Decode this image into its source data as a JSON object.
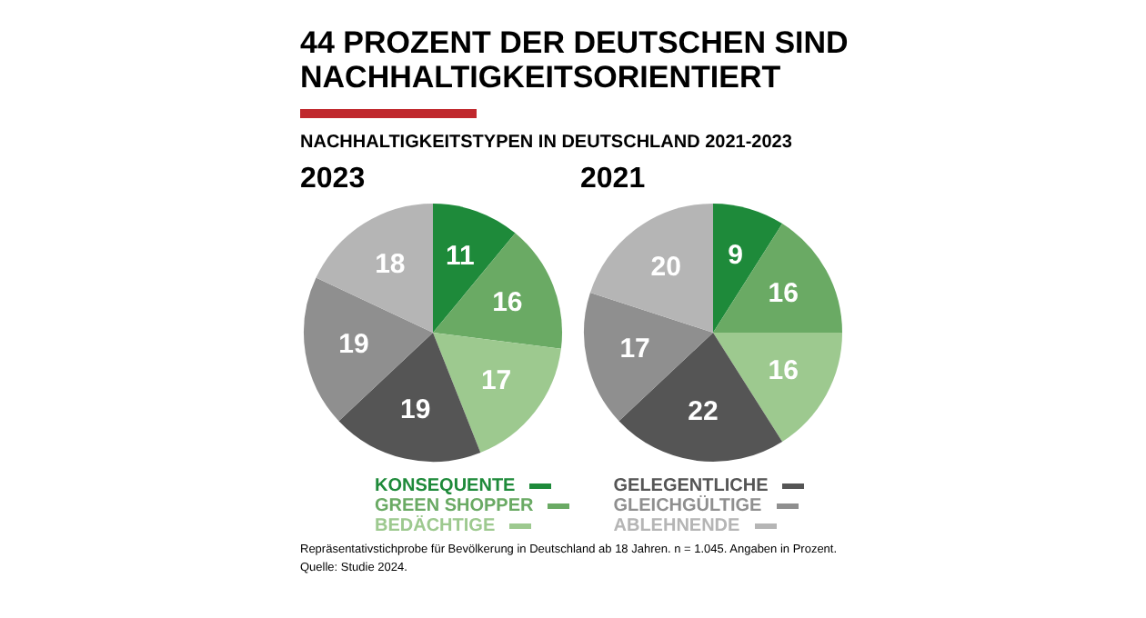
{
  "chart_data": [
    {
      "type": "pie",
      "title": "44 PROZENT DER DEUTSCHEN SIND NACHHALTIGKEITSORIENTIERT",
      "subtitle": "NACHHALTIGKEITSTYPEN IN DEUTSCHLAND 2021-2023",
      "categories": [
        "KONSEQUENTE",
        "GREEN SHOPPER",
        "BEDÄCHTIGE",
        "GELEGENTLICHE",
        "GLEICHGÜLTIGE",
        "ABLEHNENDE"
      ],
      "colors": [
        "#1e8a3a",
        "#6aaa64",
        "#9dc98f",
        "#555555",
        "#8f8f8f",
        "#b5b5b5"
      ],
      "series": [
        {
          "name": "2023",
          "values": [
            11,
            16,
            17,
            19,
            19,
            18
          ]
        }
      ],
      "data_labels": true,
      "legend": "bottom",
      "annotations": [
        "Repräsentativstichprobe für Bevölkerung in Deutschland ab 18 Jahren. n = 1.045. Angaben in Prozent.",
        "Quelle: Studie 2024."
      ]
    },
    {
      "type": "pie",
      "categories": [
        null,
        null,
        null,
        null,
        null,
        null
      ],
      "colors": [
        "#1e8a3a",
        "#6aaa64",
        "#9dc98f",
        "#555555",
        "#8f8f8f",
        "#b5b5b5"
      ],
      "series": [
        {
          "name": "2021",
          "values": [
            9,
            16,
            16,
            22,
            17,
            20
          ]
        }
      ],
      "data_labels": true
    }
  ]
}
